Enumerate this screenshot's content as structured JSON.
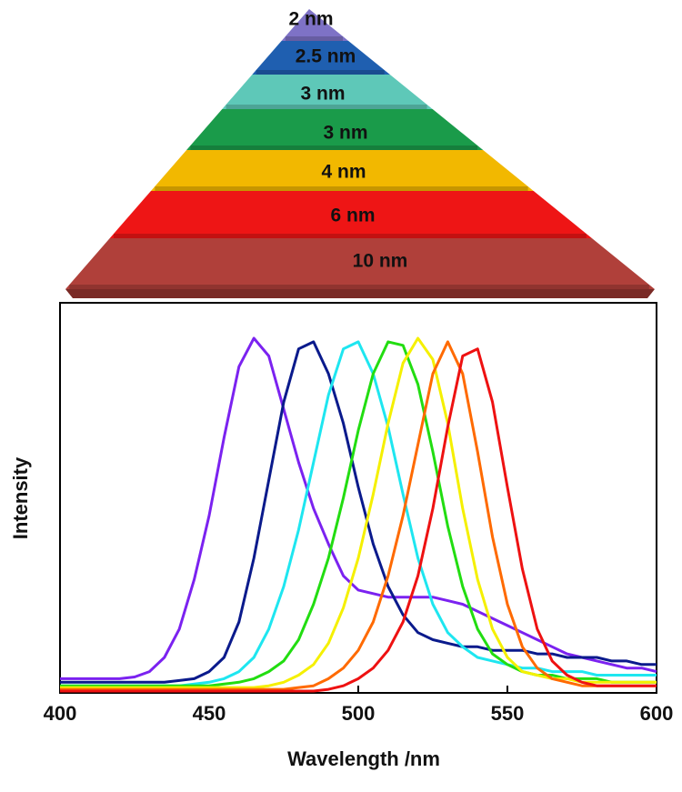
{
  "pyramid": {
    "layers": [
      {
        "label": "2 nm",
        "color": "#7e72c6"
      },
      {
        "label": "2.5 nm",
        "color": "#1f5fb0"
      },
      {
        "label": "3 nm",
        "color": "#5ec8b8"
      },
      {
        "label": "3 nm",
        "color": "#1a9b4a"
      },
      {
        "label": "4 nm",
        "color": "#f2b800"
      },
      {
        "label": "6 nm",
        "color": "#ee1515"
      },
      {
        "label": "10 nm",
        "color": "#b0403a"
      }
    ]
  },
  "chart_data": {
    "type": "line",
    "xlabel": "Wavelength /nm",
    "ylabel": "Intensity",
    "xlim": [
      400,
      600
    ],
    "xticks": [
      400,
      450,
      500,
      550,
      600
    ],
    "ylim": [
      0,
      1.1
    ],
    "x": [
      400,
      405,
      410,
      415,
      420,
      425,
      430,
      435,
      440,
      445,
      450,
      455,
      460,
      465,
      470,
      475,
      480,
      485,
      490,
      495,
      500,
      505,
      510,
      515,
      520,
      525,
      530,
      535,
      540,
      545,
      550,
      555,
      560,
      565,
      570,
      575,
      580,
      585,
      590,
      595,
      600
    ],
    "series": [
      {
        "color": "#7b22f0",
        "values": [
          0.04,
          0.04,
          0.04,
          0.04,
          0.04,
          0.045,
          0.06,
          0.1,
          0.18,
          0.32,
          0.5,
          0.72,
          0.92,
          1.0,
          0.95,
          0.8,
          0.65,
          0.52,
          0.42,
          0.33,
          0.29,
          0.28,
          0.27,
          0.27,
          0.27,
          0.27,
          0.26,
          0.25,
          0.23,
          0.21,
          0.19,
          0.17,
          0.15,
          0.13,
          0.11,
          0.1,
          0.09,
          0.08,
          0.07,
          0.07,
          0.06
        ]
      },
      {
        "color": "#0a1a8c",
        "values": [
          0.03,
          0.03,
          0.03,
          0.03,
          0.03,
          0.03,
          0.03,
          0.03,
          0.035,
          0.04,
          0.06,
          0.1,
          0.2,
          0.38,
          0.6,
          0.82,
          0.97,
          0.99,
          0.9,
          0.76,
          0.58,
          0.42,
          0.3,
          0.22,
          0.17,
          0.15,
          0.14,
          0.13,
          0.13,
          0.12,
          0.12,
          0.12,
          0.11,
          0.11,
          0.1,
          0.1,
          0.1,
          0.09,
          0.09,
          0.08,
          0.08
        ]
      },
      {
        "color": "#1ee6f0",
        "values": [
          0.02,
          0.02,
          0.02,
          0.02,
          0.02,
          0.02,
          0.02,
          0.02,
          0.02,
          0.025,
          0.03,
          0.04,
          0.06,
          0.1,
          0.18,
          0.3,
          0.46,
          0.65,
          0.84,
          0.97,
          0.99,
          0.9,
          0.75,
          0.56,
          0.38,
          0.25,
          0.17,
          0.13,
          0.1,
          0.09,
          0.08,
          0.07,
          0.07,
          0.06,
          0.06,
          0.06,
          0.05,
          0.05,
          0.05,
          0.05,
          0.05
        ]
      },
      {
        "color": "#22dd11",
        "values": [
          0.02,
          0.02,
          0.02,
          0.02,
          0.02,
          0.02,
          0.02,
          0.02,
          0.02,
          0.02,
          0.02,
          0.025,
          0.03,
          0.04,
          0.06,
          0.09,
          0.15,
          0.25,
          0.38,
          0.55,
          0.74,
          0.9,
          0.99,
          0.98,
          0.87,
          0.68,
          0.47,
          0.3,
          0.18,
          0.11,
          0.08,
          0.06,
          0.05,
          0.05,
          0.04,
          0.04,
          0.04,
          0.03,
          0.03,
          0.03,
          0.03
        ]
      },
      {
        "color": "#f5f000",
        "values": [
          0.015,
          0.015,
          0.015,
          0.015,
          0.015,
          0.015,
          0.015,
          0.015,
          0.015,
          0.015,
          0.015,
          0.015,
          0.015,
          0.015,
          0.02,
          0.03,
          0.05,
          0.08,
          0.14,
          0.24,
          0.38,
          0.56,
          0.76,
          0.93,
          1.0,
          0.94,
          0.76,
          0.52,
          0.32,
          0.18,
          0.1,
          0.06,
          0.05,
          0.04,
          0.04,
          0.03,
          0.03,
          0.03,
          0.03,
          0.03,
          0.03
        ]
      },
      {
        "color": "#ff6a00",
        "values": [
          0.01,
          0.01,
          0.01,
          0.01,
          0.01,
          0.01,
          0.01,
          0.01,
          0.01,
          0.01,
          0.01,
          0.01,
          0.01,
          0.01,
          0.01,
          0.01,
          0.015,
          0.02,
          0.04,
          0.07,
          0.12,
          0.2,
          0.33,
          0.5,
          0.7,
          0.9,
          0.99,
          0.9,
          0.68,
          0.44,
          0.25,
          0.13,
          0.07,
          0.04,
          0.03,
          0.02,
          0.02,
          0.02,
          0.02,
          0.02,
          0.02
        ]
      },
      {
        "color": "#ee1111",
        "values": [
          0.005,
          0.005,
          0.005,
          0.005,
          0.005,
          0.005,
          0.005,
          0.005,
          0.005,
          0.005,
          0.005,
          0.005,
          0.005,
          0.005,
          0.005,
          0.005,
          0.005,
          0.005,
          0.01,
          0.02,
          0.04,
          0.07,
          0.12,
          0.2,
          0.33,
          0.52,
          0.75,
          0.95,
          0.97,
          0.82,
          0.58,
          0.35,
          0.18,
          0.09,
          0.05,
          0.03,
          0.02,
          0.02,
          0.02,
          0.02,
          0.02
        ]
      }
    ]
  }
}
